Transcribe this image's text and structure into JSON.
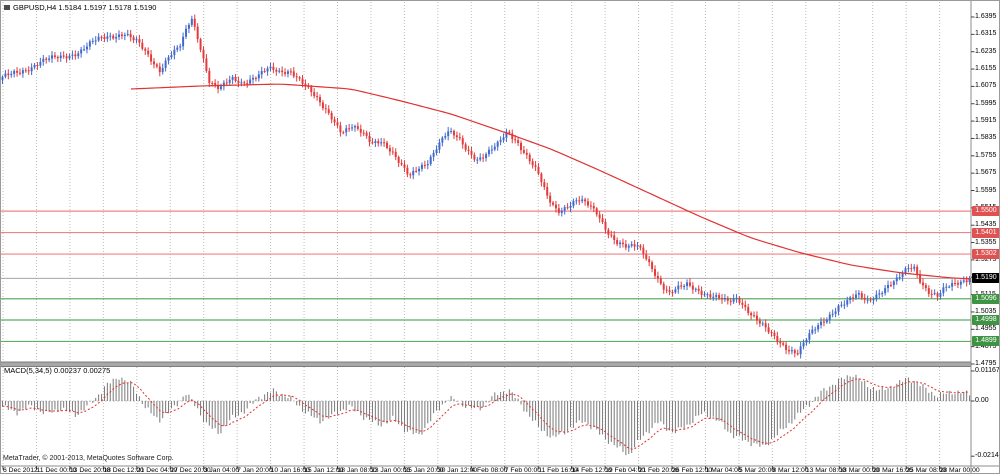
{
  "window": {
    "title": "GBPUSD,H4 1.5184 1.5197 1.5178 1.5190",
    "copyright": "MetaTrader, © 2001-2013, MetaQuotes Software Corp."
  },
  "chart_data": {
    "type": "candlestick",
    "symbol": "GBPUSD",
    "timeframe": "H4",
    "title": "GBPUSD,H4 1.5184 1.5197 1.5178 1.5190",
    "ohlc_display": {
      "open": "1.5184",
      "high": "1.5197",
      "low": "1.5178",
      "close": "1.5190"
    },
    "price_axis": {
      "max": 1.6395,
      "min": 1.4795,
      "step": 0.008,
      "ticks": [
        "1.6395",
        "1.6315",
        "1.6235",
        "1.6155",
        "1.6075",
        "1.5995",
        "1.5915",
        "1.5835",
        "1.5755",
        "1.5675",
        "1.5595",
        "1.5515",
        "1.5435",
        "1.5355",
        "1.5275",
        "1.5195",
        "1.5115",
        "1.5035",
        "1.4955",
        "1.4875",
        "1.4795"
      ]
    },
    "time_axis": {
      "labels": [
        "6 Dec 2012",
        "11 Dec 00:00",
        "13 Dec 20:00",
        "18 Dec 12:00",
        "21 Dec 04:00",
        "27 Dec 20:00",
        "3 Jan 04:00",
        "7 Jan 20:00",
        "10 Jan 16:00",
        "15 Jan 12:00",
        "18 Jan 08:00",
        "23 Jan 00:00",
        "25 Jan 20:00",
        "30 Jan 12:00",
        "4 Feb 08:00",
        "7 Feb 00:00",
        "11 Feb 16:00",
        "14 Feb 12:00",
        "19 Feb 04:00",
        "21 Feb 20:00",
        "26 Feb 12:00",
        "1 Mar 04:00",
        "5 Mar 20:00",
        "8 Mar 12:00",
        "13 Mar 08:00",
        "18 Mar 00:00",
        "20 Mar 16:00",
        "25 Mar 08:00",
        "28 Mar 00:00"
      ]
    },
    "levels": [
      {
        "price": 1.55,
        "label": "1.5500",
        "kind": "resistance"
      },
      {
        "price": 1.5401,
        "label": "1.5401",
        "kind": "resistance"
      },
      {
        "price": 1.5302,
        "label": "1.5302",
        "kind": "resistance"
      },
      {
        "price": 1.5096,
        "label": "1.5096",
        "kind": "support"
      },
      {
        "price": 1.4998,
        "label": "1.4998",
        "kind": "support"
      },
      {
        "price": 1.4899,
        "label": "1.4899",
        "kind": "support"
      }
    ],
    "current_price": {
      "value": 1.519,
      "label": "1.5190"
    },
    "price_path": [
      [
        0,
        1.6105
      ],
      [
        20,
        1.614
      ],
      [
        40,
        1.618
      ],
      [
        60,
        1.62
      ],
      [
        80,
        1.6235
      ],
      [
        95,
        1.628
      ],
      [
        110,
        1.631
      ],
      [
        125,
        1.633
      ],
      [
        138,
        1.628
      ],
      [
        150,
        1.621
      ],
      [
        160,
        1.616
      ],
      [
        170,
        1.623
      ],
      [
        180,
        1.6255
      ],
      [
        192,
        1.6385
      ],
      [
        200,
        1.627
      ],
      [
        210,
        1.61
      ],
      [
        220,
        1.606
      ],
      [
        232,
        1.6095
      ],
      [
        242,
        1.608
      ],
      [
        255,
        1.612
      ],
      [
        268,
        1.615
      ],
      [
        280,
        1.613
      ],
      [
        292,
        1.615
      ],
      [
        302,
        1.611
      ],
      [
        312,
        1.605
      ],
      [
        322,
        1.5985
      ],
      [
        332,
        1.594
      ],
      [
        342,
        1.588
      ],
      [
        352,
        1.59
      ],
      [
        362,
        1.586
      ],
      [
        372,
        1.581
      ],
      [
        382,
        1.583
      ],
      [
        392,
        1.578
      ],
      [
        402,
        1.57
      ],
      [
        410,
        1.5645
      ],
      [
        418,
        1.5685
      ],
      [
        428,
        1.5725
      ],
      [
        438,
        1.58
      ],
      [
        448,
        1.5855
      ],
      [
        458,
        1.583
      ],
      [
        468,
        1.578
      ],
      [
        478,
        1.5745
      ],
      [
        488,
        1.577
      ],
      [
        498,
        1.5805
      ],
      [
        508,
        1.587
      ],
      [
        518,
        1.583
      ],
      [
        528,
        1.576
      ],
      [
        538,
        1.568
      ],
      [
        548,
        1.556
      ],
      [
        558,
        1.5505
      ],
      [
        568,
        1.553
      ],
      [
        578,
        1.555
      ],
      [
        588,
        1.552
      ],
      [
        598,
        1.548
      ],
      [
        608,
        1.5405
      ],
      [
        618,
        1.535
      ],
      [
        628,
        1.532
      ],
      [
        638,
        1.533
      ],
      [
        646,
        1.529
      ],
      [
        654,
        1.523
      ],
      [
        662,
        1.516
      ],
      [
        670,
        1.5115
      ],
      [
        678,
        1.514
      ],
      [
        688,
        1.517
      ],
      [
        698,
        1.515
      ],
      [
        708,
        1.512
      ],
      [
        718,
        1.51
      ],
      [
        728,
        1.5085
      ],
      [
        738,
        1.511
      ],
      [
        748,
        1.505
      ],
      [
        758,
        1.499
      ],
      [
        768,
        1.494
      ],
      [
        778,
        1.49
      ],
      [
        788,
        1.4865
      ],
      [
        798,
        1.484
      ],
      [
        808,
        1.4905
      ],
      [
        818,
        1.496
      ],
      [
        828,
        1.501
      ],
      [
        838,
        1.506
      ],
      [
        848,
        1.508
      ],
      [
        858,
        1.511
      ],
      [
        868,
        1.509
      ],
      [
        878,
        1.513
      ],
      [
        888,
        1.516
      ],
      [
        898,
        1.5185
      ],
      [
        908,
        1.524
      ],
      [
        914,
        1.5255
      ],
      [
        922,
        1.518
      ],
      [
        930,
        1.513
      ],
      [
        938,
        1.5105
      ],
      [
        946,
        1.514
      ],
      [
        954,
        1.516
      ],
      [
        962,
        1.5178
      ],
      [
        970,
        1.519
      ]
    ],
    "ma_line": [
      [
        130,
        1.6063
      ],
      [
        200,
        1.6077
      ],
      [
        280,
        1.6086
      ],
      [
        350,
        1.6063
      ],
      [
        400,
        1.6008
      ],
      [
        450,
        1.5948
      ],
      [
        500,
        1.5869
      ],
      [
        550,
        1.5786
      ],
      [
        600,
        1.5685
      ],
      [
        650,
        1.5579
      ],
      [
        700,
        1.5473
      ],
      [
        750,
        1.5376
      ],
      [
        800,
        1.5307
      ],
      [
        850,
        1.5251
      ],
      [
        900,
        1.5215
      ],
      [
        950,
        1.5192
      ],
      [
        970,
        1.5187
      ]
    ],
    "macd": {
      "label": "MACD(5,34,5) 0.00237 0.00275",
      "scale": [
        {
          "v": 0.01167,
          "label": "0.01167"
        },
        {
          "v": 0,
          "label": "0.00"
        },
        {
          "v": -0.02147,
          "label": "-0.02147"
        }
      ],
      "anchors": [
        [
          0,
          -0.002
        ],
        [
          15,
          -0.0045
        ],
        [
          30,
          -0.002
        ],
        [
          45,
          -0.005
        ],
        [
          60,
          -0.003
        ],
        [
          75,
          -0.0055
        ],
        [
          90,
          -0.001
        ],
        [
          105,
          0.006
        ],
        [
          118,
          0.0095
        ],
        [
          132,
          0.006
        ],
        [
          145,
          -0.003
        ],
        [
          158,
          -0.0075
        ],
        [
          172,
          -0.003
        ],
        [
          185,
          0.003
        ],
        [
          195,
          -0.002
        ],
        [
          205,
          -0.009
        ],
        [
          218,
          -0.0125
        ],
        [
          230,
          -0.007
        ],
        [
          245,
          -0.0035
        ],
        [
          258,
          0.0015
        ],
        [
          272,
          0.004
        ],
        [
          288,
          0.0015
        ],
        [
          302,
          -0.0035
        ],
        [
          318,
          -0.008
        ],
        [
          332,
          -0.0055
        ],
        [
          348,
          -0.002
        ],
        [
          362,
          -0.006
        ],
        [
          378,
          -0.0095
        ],
        [
          392,
          -0.007
        ],
        [
          405,
          -0.0115
        ],
        [
          418,
          -0.0135
        ],
        [
          432,
          -0.006
        ],
        [
          448,
          0.0015
        ],
        [
          462,
          -0.0015
        ],
        [
          478,
          -0.0035
        ],
        [
          492,
          0.002
        ],
        [
          508,
          0.0045
        ],
        [
          522,
          -0.0025
        ],
        [
          538,
          -0.0105
        ],
        [
          552,
          -0.0145
        ],
        [
          568,
          -0.011
        ],
        [
          582,
          -0.0075
        ],
        [
          598,
          -0.0125
        ],
        [
          612,
          -0.017
        ],
        [
          628,
          -0.021
        ],
        [
          642,
          -0.0135
        ],
        [
          658,
          -0.008
        ],
        [
          672,
          -0.0125
        ],
        [
          688,
          -0.009
        ],
        [
          702,
          -0.0045
        ],
        [
          718,
          -0.008
        ],
        [
          732,
          -0.0135
        ],
        [
          748,
          -0.016
        ],
        [
          762,
          -0.018
        ],
        [
          778,
          -0.0125
        ],
        [
          792,
          -0.0075
        ],
        [
          806,
          -0.002
        ],
        [
          822,
          0.004
        ],
        [
          838,
          0.008
        ],
        [
          852,
          0.0105
        ],
        [
          866,
          0.006
        ],
        [
          880,
          0.004
        ],
        [
          895,
          0.0065
        ],
        [
          908,
          0.009
        ],
        [
          922,
          0.0055
        ],
        [
          936,
          0.002
        ],
        [
          950,
          0.0035
        ],
        [
          968,
          0.003
        ]
      ]
    },
    "colors": {
      "bull": "#4169cd",
      "bear": "#e23b3b",
      "ma": "#e03232",
      "resistance_line": "#f08484",
      "resistance_badge": "#e05252",
      "support_line": "#5fae63",
      "support_badge": "#3f9443",
      "current_line": "#9a9a9a",
      "current_badge": "#000000",
      "macd_bar": "#787878",
      "macd_signal": "#e03232",
      "grid": "#bcbcbc",
      "border": "#8c8c8c"
    },
    "layout_hints": {
      "grid": "vertical-dashed",
      "price_scale_side": "right",
      "panes": [
        "price",
        "macd"
      ]
    }
  }
}
